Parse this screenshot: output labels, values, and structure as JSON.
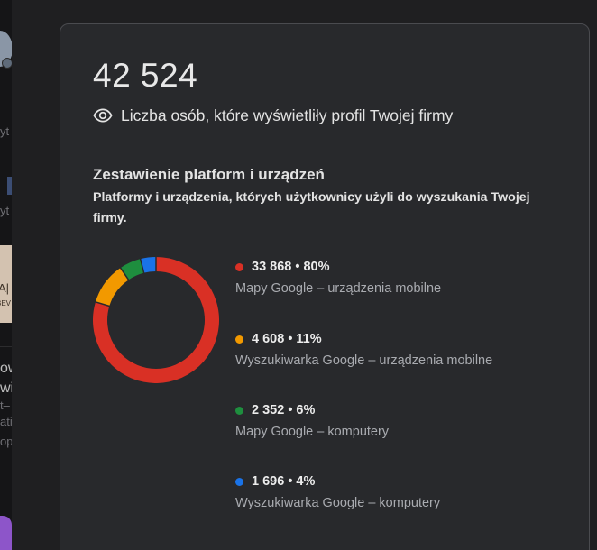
{
  "header": {
    "total_views": "42 524",
    "views_label": "Liczba osób, które wyświetliły profil Twojej firmy"
  },
  "breakdown": {
    "title": "Zestawienie platform i urządzeń",
    "description": "Platformy i urządzenia, których użytkownicy użyli do wyszukania Twojej firmy."
  },
  "legend": [
    {
      "value_text": "33 868 • 80%",
      "label": "Mapy Google – urządzenia mobilne",
      "color": "#d93025"
    },
    {
      "value_text": "4 608 • 11%",
      "label": "Wyszukiwarka Google – urządzenia mobilne",
      "color": "#f29900"
    },
    {
      "value_text": "2 352 • 6%",
      "label": "Mapy Google – komputery",
      "color": "#1e8e3e"
    },
    {
      "value_text": "1 696 • 4%",
      "label": "Wyszukiwarka Google – komputery",
      "color": "#1a73e8"
    }
  ],
  "chart_data": {
    "type": "pie",
    "style": "donut",
    "categories": [
      "Mapy Google – urządzenia mobilne",
      "Wyszukiwarka Google – urządzenia mobilne",
      "Mapy Google – komputery",
      "Wyszukiwarka Google – komputery"
    ],
    "values": [
      33868,
      4608,
      2352,
      1696
    ],
    "percents": [
      80,
      11,
      6,
      4
    ],
    "colors": [
      "#d93025",
      "#f29900",
      "#1e8e3e",
      "#1a73e8"
    ],
    "title": "",
    "legend": "right"
  },
  "background_page": {
    "snippets": [
      "yt",
      "yt",
      "A|",
      "BEV",
      "ow",
      "wia",
      "t–",
      "ati",
      "op"
    ]
  }
}
